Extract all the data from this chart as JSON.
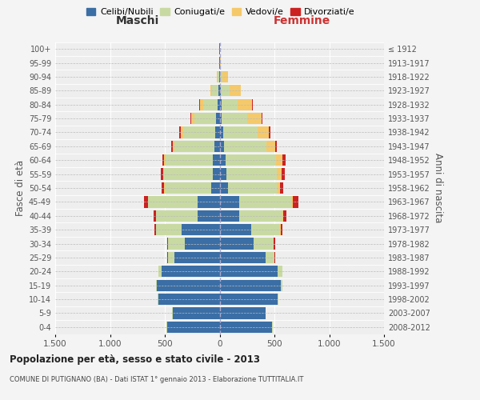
{
  "age_groups": [
    "0-4",
    "5-9",
    "10-14",
    "15-19",
    "20-24",
    "25-29",
    "30-34",
    "35-39",
    "40-44",
    "45-49",
    "50-54",
    "55-59",
    "60-64",
    "65-69",
    "70-74",
    "75-79",
    "80-84",
    "85-89",
    "90-94",
    "95-99",
    "100+"
  ],
  "birth_years": [
    "2008-2012",
    "2003-2007",
    "1998-2002",
    "1993-1997",
    "1988-1992",
    "1983-1987",
    "1978-1982",
    "1973-1977",
    "1968-1972",
    "1963-1967",
    "1958-1962",
    "1953-1957",
    "1948-1952",
    "1943-1947",
    "1938-1942",
    "1933-1937",
    "1928-1932",
    "1923-1927",
    "1918-1922",
    "1913-1917",
    "≤ 1912"
  ],
  "maschi": {
    "celibi": [
      480,
      430,
      560,
      570,
      530,
      410,
      320,
      350,
      200,
      200,
      80,
      65,
      60,
      50,
      40,
      30,
      20,
      10,
      5,
      2,
      2
    ],
    "coniugati": [
      2,
      3,
      5,
      10,
      30,
      60,
      150,
      230,
      380,
      450,
      420,
      440,
      430,
      360,
      290,
      200,
      130,
      60,
      15,
      3,
      2
    ],
    "vedovi": [
      0,
      0,
      0,
      0,
      0,
      1,
      1,
      2,
      3,
      5,
      8,
      10,
      15,
      20,
      25,
      30,
      30,
      15,
      5,
      1,
      0
    ],
    "divorziati": [
      0,
      0,
      0,
      1,
      2,
      5,
      10,
      15,
      20,
      35,
      20,
      20,
      20,
      10,
      10,
      5,
      3,
      2,
      1,
      0,
      0
    ]
  },
  "femmine": {
    "nubili": [
      480,
      420,
      530,
      560,
      530,
      420,
      310,
      290,
      180,
      180,
      80,
      60,
      55,
      40,
      30,
      20,
      15,
      10,
      5,
      2,
      2
    ],
    "coniugate": [
      2,
      3,
      5,
      15,
      40,
      80,
      180,
      260,
      390,
      470,
      440,
      460,
      460,
      390,
      320,
      230,
      150,
      80,
      20,
      3,
      2
    ],
    "vedove": [
      0,
      0,
      0,
      0,
      1,
      2,
      3,
      5,
      10,
      20,
      30,
      45,
      60,
      80,
      100,
      130,
      130,
      100,
      50,
      5,
      1
    ],
    "divorziate": [
      0,
      0,
      0,
      1,
      2,
      6,
      12,
      20,
      30,
      50,
      30,
      30,
      25,
      15,
      12,
      8,
      5,
      3,
      2,
      0,
      0
    ]
  },
  "colors": {
    "celibi": "#3a6ea5",
    "coniugati": "#c8daa2",
    "vedovi": "#f5c96a",
    "divorziati": "#cc2222"
  },
  "title": "Popolazione per età, sesso e stato civile - 2013",
  "subtitle": "COMUNE DI PUTIGNANO (BA) - Dati ISTAT 1° gennaio 2013 - Elaborazione TUTTITALIA.IT",
  "ylabel_left": "Fasce di età",
  "ylabel_right": "Anni di nascita",
  "xlabel_maschi": "Maschi",
  "xlabel_femmine": "Femmine",
  "xlim": 1500,
  "legend_labels": [
    "Celibi/Nubili",
    "Coniugati/e",
    "Vedovi/e",
    "Divorziati/e"
  ],
  "bg_color": "#f4f4f4",
  "plot_bg": "#eeeeee"
}
